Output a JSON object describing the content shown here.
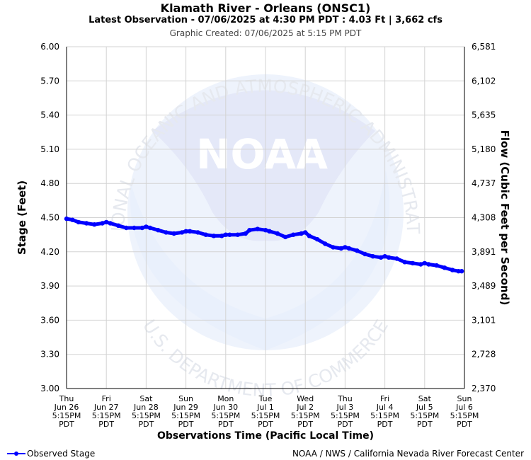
{
  "header": {
    "title": "Klamath River - Orleans (ONSC1)",
    "subtitle": "Latest Observation - 07/06/2025 at 4:30 PM PDT : 4.03 Ft | 3,662 cfs",
    "created": "Graphic Created: 07/06/2025 at 5:15 PM PDT"
  },
  "legend": {
    "label": "Observed Stage"
  },
  "credit": "NOAA / NWS / California Nevada River Forecast Center",
  "watermark": {
    "logo_text": "NOAA",
    "arc_top": "NATIONAL OCEANIC AND ATMOSPHERIC ADMINISTRATION",
    "arc_bottom": "U.S. DEPARTMENT OF COMMERCE"
  },
  "colors": {
    "series": "#0000ff",
    "grid": "#d3d3d3",
    "watermark": "#dfe6f6"
  },
  "chart_data": {
    "type": "line",
    "title": "Klamath River - Orleans (ONSC1)",
    "xlabel": "Observations Time (Pacific Local Time)",
    "ylabel": "Stage (Feet)",
    "y2label": "Flow (Cubic Feet per Second)",
    "ylim": [
      3.0,
      6.0
    ],
    "yticks": [
      "3.00",
      "3.30",
      "3.60",
      "3.90",
      "4.20",
      "4.50",
      "4.80",
      "5.10",
      "5.40",
      "5.70",
      "6.00"
    ],
    "y2ticks": [
      "2,370",
      "2,728",
      "3,101",
      "3,489",
      "3,891",
      "4,308",
      "4,737",
      "5,180",
      "5,635",
      "6,102",
      "6,581"
    ],
    "xlim": [
      0,
      10
    ],
    "xticks": [
      {
        "day": "Thu",
        "date": "Jun 26",
        "time": "5:15PM",
        "tz": "PDT"
      },
      {
        "day": "Fri",
        "date": "Jun 27",
        "time": "5:15PM",
        "tz": "PDT"
      },
      {
        "day": "Sat",
        "date": "Jun 28",
        "time": "5:15PM",
        "tz": "PDT"
      },
      {
        "day": "Sun",
        "date": "Jun 29",
        "time": "5:15PM",
        "tz": "PDT"
      },
      {
        "day": "Mon",
        "date": "Jun 30",
        "time": "5:15PM",
        "tz": "PDT"
      },
      {
        "day": "Tue",
        "date": "Jul 1",
        "time": "5:15PM",
        "tz": "PDT"
      },
      {
        "day": "Wed",
        "date": "Jul 2",
        "time": "5:15PM",
        "tz": "PDT"
      },
      {
        "day": "Thu",
        "date": "Jul 3",
        "time": "5:15PM",
        "tz": "PDT"
      },
      {
        "day": "Fri",
        "date": "Jul 4",
        "time": "5:15PM",
        "tz": "PDT"
      },
      {
        "day": "Sat",
        "date": "Jul 5",
        "time": "5:15PM",
        "tz": "PDT"
      },
      {
        "day": "Sun",
        "date": "Jul 6",
        "time": "5:15PM",
        "tz": "PDT"
      }
    ],
    "grid": true,
    "legend_position": "bottom-left",
    "series": [
      {
        "name": "Observed Stage",
        "x": [
          0.0,
          0.15,
          0.3,
          0.5,
          0.7,
          0.9,
          1.0,
          1.1,
          1.3,
          1.5,
          1.7,
          1.9,
          2.0,
          2.1,
          2.3,
          2.5,
          2.7,
          2.9,
          3.0,
          3.1,
          3.3,
          3.5,
          3.7,
          3.9,
          4.0,
          4.1,
          4.3,
          4.5,
          4.6,
          4.8,
          5.0,
          5.1,
          5.3,
          5.5,
          5.7,
          5.9,
          6.0,
          6.1,
          6.3,
          6.5,
          6.7,
          6.9,
          7.0,
          7.1,
          7.3,
          7.5,
          7.7,
          7.9,
          8.0,
          8.1,
          8.3,
          8.5,
          8.7,
          8.9,
          9.0,
          9.1,
          9.3,
          9.5,
          9.7,
          9.85,
          9.93
        ],
        "y": [
          4.49,
          4.48,
          4.46,
          4.45,
          4.44,
          4.45,
          4.46,
          4.45,
          4.43,
          4.41,
          4.41,
          4.41,
          4.42,
          4.41,
          4.39,
          4.37,
          4.36,
          4.37,
          4.38,
          4.38,
          4.37,
          4.35,
          4.34,
          4.34,
          4.35,
          4.35,
          4.35,
          4.36,
          4.39,
          4.4,
          4.39,
          4.38,
          4.36,
          4.33,
          4.35,
          4.36,
          4.37,
          4.34,
          4.31,
          4.27,
          4.24,
          4.23,
          4.24,
          4.23,
          4.21,
          4.18,
          4.16,
          4.15,
          4.16,
          4.15,
          4.14,
          4.11,
          4.1,
          4.09,
          4.1,
          4.09,
          4.08,
          4.06,
          4.04,
          4.03,
          4.03
        ]
      }
    ]
  }
}
